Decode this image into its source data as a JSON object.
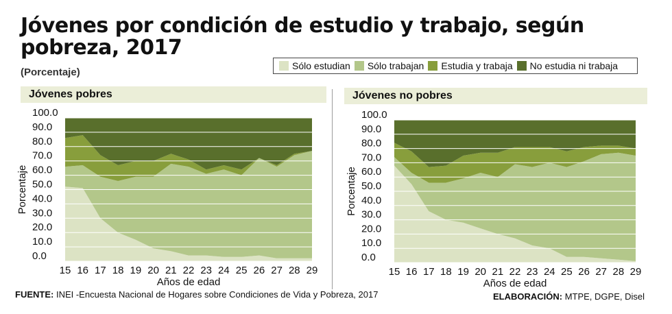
{
  "title": "Jóvenes por condición de estudio y trabajo, según pobreza, 2017",
  "subtitle": "(Porcentaje)",
  "colors": {
    "solo_estudian": "#dce3c4",
    "solo_trabajan": "#b3c78a",
    "estudia_y_trabaja": "#889e3c",
    "no_estudia_ni_trabaja": "#596f2c",
    "panel_header_bg": "#ebeed8"
  },
  "legend": [
    {
      "label": "Sólo estudian",
      "color": "#dce3c4"
    },
    {
      "label": "Sólo trabajan",
      "color": "#b3c78a"
    },
    {
      "label": "Estudia y trabaja",
      "color": "#889e3c"
    },
    {
      "label": "No estudia ni trabaja",
      "color": "#596f2c"
    }
  ],
  "footer": {
    "source_label": "FUENTE:",
    "source_text": " INEI -Encuesta Nacional de Hogares sobre Condiciones de Vida y Pobreza, 2017",
    "credit_label": "ELABORACIÓN:",
    "credit_text": " MTPE, DGPE, Disel"
  },
  "chart_data": [
    {
      "type": "area",
      "panel_title": "Jóvenes pobres",
      "stacked": true,
      "x": [
        15,
        16,
        17,
        18,
        19,
        20,
        21,
        22,
        23,
        24,
        25,
        26,
        27,
        28,
        29
      ],
      "xlabel": "Años de edad",
      "ylabel": "Porcentaje",
      "ylim": [
        0,
        100
      ],
      "yticks": [
        "0.0",
        "10.0",
        "20.0",
        "30.0",
        "40.0",
        "50.0",
        "60.0",
        "70.0",
        "80.0",
        "90.0",
        "100.0"
      ],
      "grid": true,
      "series": [
        {
          "name": "Sólo estudian",
          "values": [
            52,
            51,
            30,
            20,
            15,
            9,
            7,
            4,
            4,
            3,
            3,
            4,
            2,
            2,
            2
          ]
        },
        {
          "name": "Sólo trabajan",
          "values": [
            14,
            16,
            29,
            36,
            44,
            50,
            61,
            62,
            57,
            61,
            57,
            68,
            64,
            72,
            75
          ]
        },
        {
          "name": "Estudia y trabaja",
          "values": [
            20,
            21,
            15,
            11,
            11,
            11,
            7,
            5,
            3,
            3,
            4,
            0,
            1,
            1,
            0
          ]
        },
        {
          "name": "No estudia ni trabaja",
          "values": [
            14,
            12,
            26,
            33,
            30,
            30,
            25,
            29,
            36,
            33,
            36,
            28,
            33,
            25,
            23
          ]
        }
      ]
    },
    {
      "type": "area",
      "panel_title": "Jóvenes no pobres",
      "stacked": true,
      "x": [
        15,
        16,
        17,
        18,
        19,
        20,
        21,
        22,
        23,
        24,
        25,
        26,
        27,
        28,
        29
      ],
      "xlabel": "Años de edad",
      "ylabel": "Porcentaje",
      "ylim": [
        0,
        100
      ],
      "yticks": [
        "0.0",
        "10.0",
        "20.0",
        "30.0",
        "40.0",
        "50.0",
        "60.0",
        "70.0",
        "80.0",
        "90.0",
        "100.0"
      ],
      "grid": true,
      "series": [
        {
          "name": "Sólo estudian",
          "values": [
            68,
            55,
            36,
            30,
            28,
            24,
            20,
            17,
            12,
            10,
            4,
            4,
            3,
            2,
            1
          ]
        },
        {
          "name": "Sólo trabajan",
          "values": [
            6,
            8,
            20,
            26,
            31,
            39,
            40,
            52,
            55,
            60,
            63,
            67,
            73,
            75,
            74
          ]
        },
        {
          "name": "Estudia y trabaja",
          "values": [
            10,
            15,
            11,
            12,
            16,
            14,
            17,
            12,
            14,
            11,
            11,
            10,
            6,
            5,
            5
          ]
        },
        {
          "name": "No estudia ni trabaja",
          "values": [
            16,
            22,
            33,
            32,
            25,
            23,
            23,
            19,
            19,
            19,
            22,
            19,
            18,
            18,
            20
          ]
        }
      ]
    }
  ]
}
